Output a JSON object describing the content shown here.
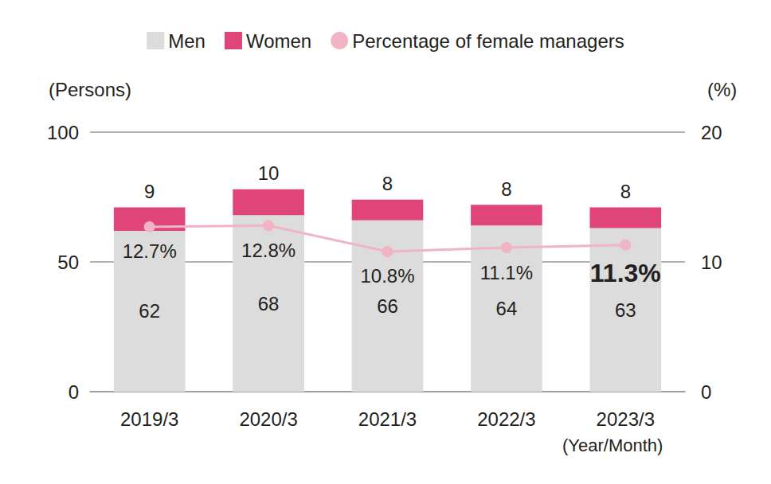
{
  "chart_data": {
    "type": "bar",
    "stacked": true,
    "data_labels": true,
    "grid": true,
    "legend": "top",
    "xlabel": "(Year/Month)",
    "ylabel": "(Persons)",
    "y2label": "(%)",
    "categories": [
      "2019/3",
      "2020/3",
      "2021/3",
      "2022/3",
      "2023/3"
    ],
    "series": [
      {
        "name": "Men",
        "type": "bar",
        "color": "#dcdcdc",
        "values": [
          62,
          68,
          66,
          64,
          63
        ]
      },
      {
        "name": "Women",
        "type": "bar",
        "color": "#e0457a",
        "values": [
          9,
          10,
          8,
          8,
          8
        ]
      },
      {
        "name": "Percentage of female managers",
        "type": "line",
        "axis": "y2",
        "color": "#f0b4c4",
        "marker": "circle",
        "values": [
          12.7,
          12.8,
          10.8,
          11.1,
          11.3
        ],
        "value_labels": [
          "12.7%",
          "12.8%",
          "10.8%",
          "11.1%",
          "11.3%"
        ]
      }
    ],
    "ylim": [
      0,
      100
    ],
    "yticks": [
      0,
      50,
      100
    ],
    "y2lim": [
      0,
      20
    ],
    "y2ticks": [
      0,
      10,
      20
    ]
  }
}
